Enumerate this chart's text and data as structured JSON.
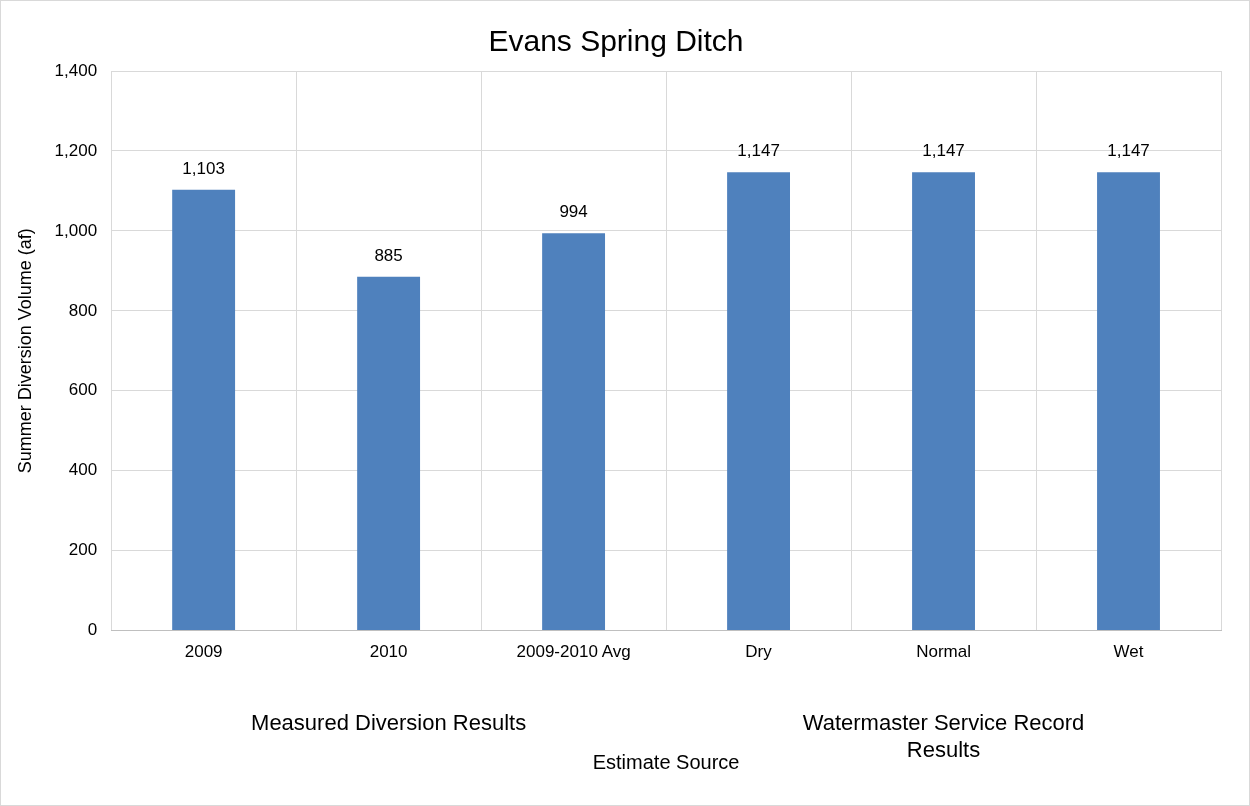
{
  "chart_data": {
    "type": "bar",
    "title": "Evans Spring Ditch",
    "xlabel": "Estimate Source",
    "ylabel": "Summer Diversion Volume (af)",
    "categories": [
      "2009",
      "2010",
      "2009-2010 Avg",
      "Dry",
      "Normal",
      "Wet"
    ],
    "values": [
      1103,
      885,
      994,
      1147,
      1147,
      1147
    ],
    "color": "#4f81bd",
    "ylim": [
      0,
      1400
    ],
    "yticks": [
      {
        "value": 0,
        "label": "0"
      },
      {
        "value": 200,
        "label": "200"
      },
      {
        "value": 400,
        "label": "400"
      },
      {
        "value": 600,
        "label": "600"
      },
      {
        "value": 800,
        "label": "800"
      },
      {
        "value": 1000,
        "label": "1,000"
      },
      {
        "value": 1200,
        "label": "1,200"
      },
      {
        "value": 1400,
        "label": "1,400"
      }
    ],
    "value_labels": [
      "1,103",
      "885",
      "994",
      "1,147",
      "1,147",
      "1,147"
    ],
    "annotations": [
      "Measured Diversion Results",
      "Watermaster Service Record Results"
    ],
    "grid": true,
    "legend": false
  }
}
